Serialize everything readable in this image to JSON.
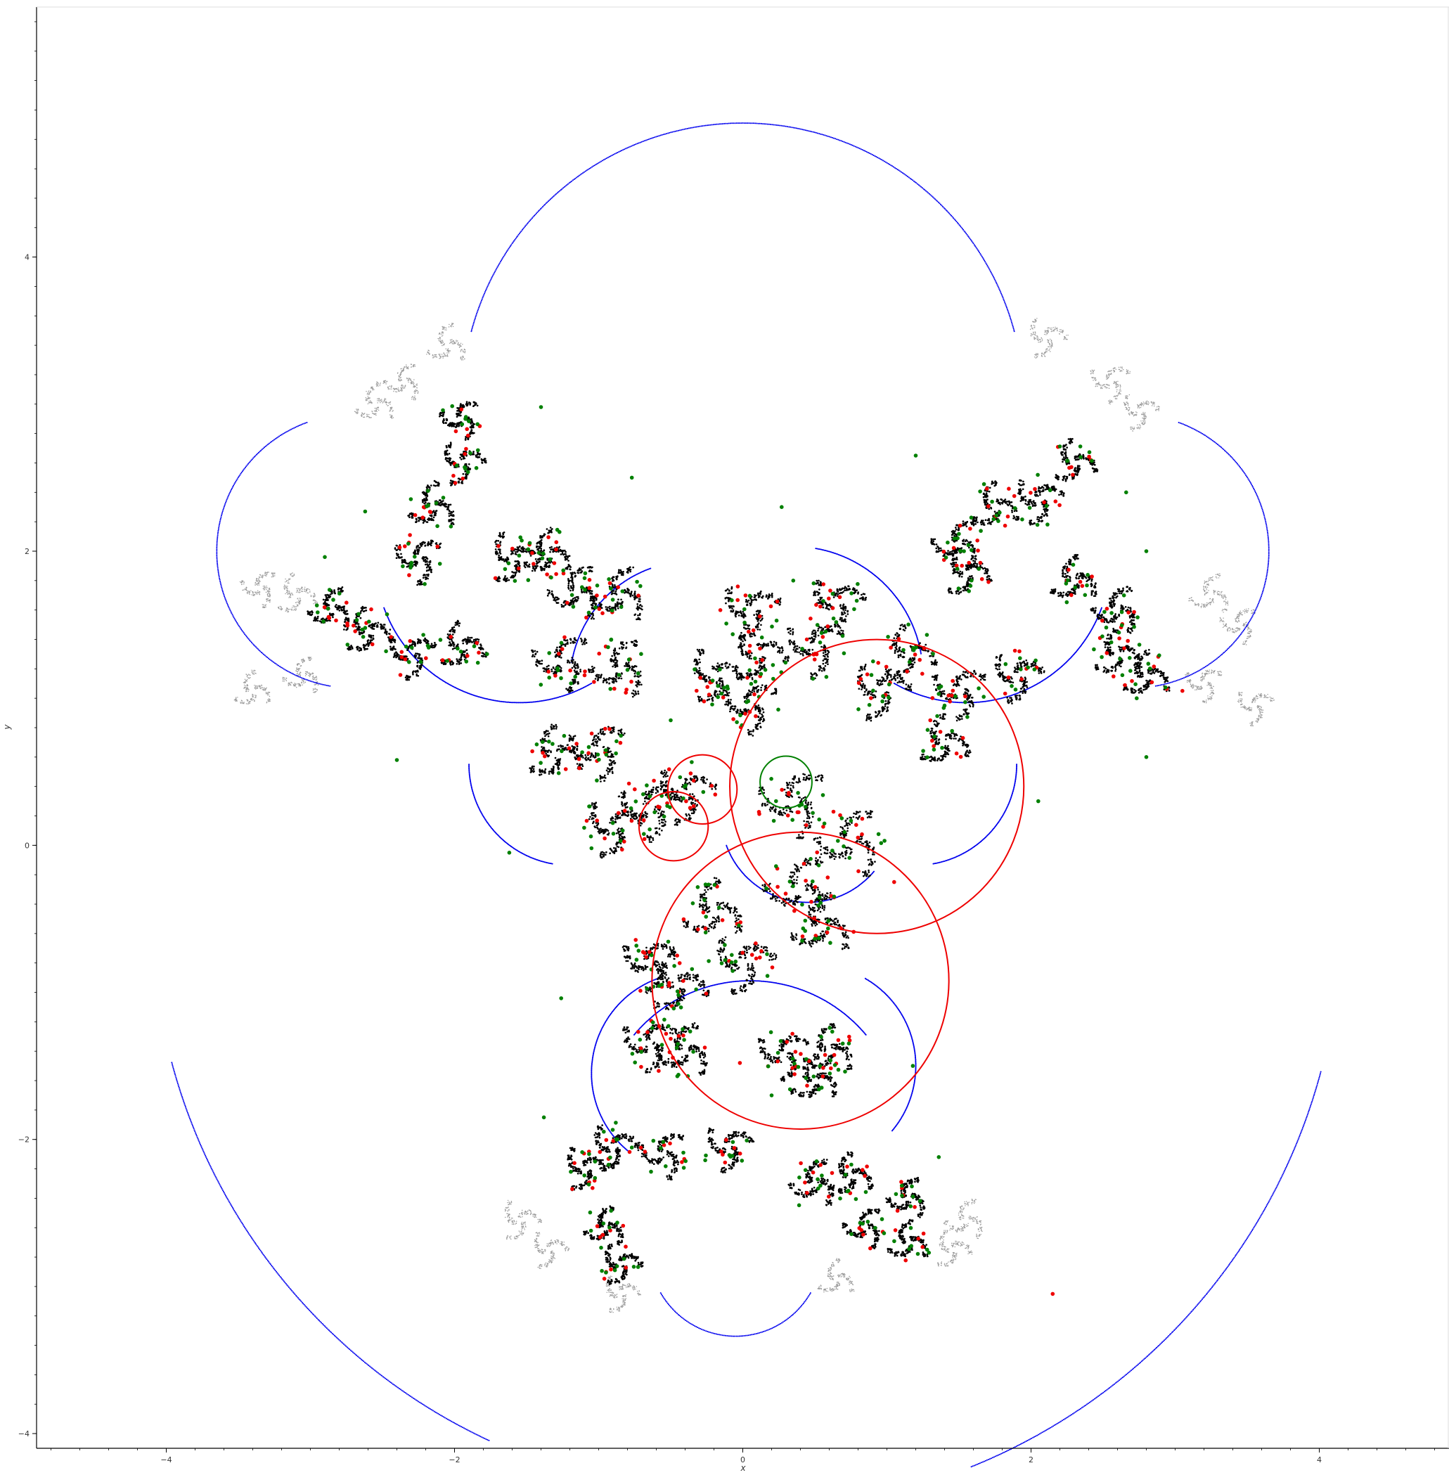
{
  "chart_data": {
    "type": "scatter",
    "xlabel": "x",
    "ylabel": "y",
    "xlim": [
      -4.9,
      4.9
    ],
    "ylim": [
      -4.1,
      5.7
    ],
    "x_ticks": [
      -4,
      -2,
      0,
      2,
      4
    ],
    "y_ticks": [
      -4,
      -2,
      0,
      2,
      4
    ],
    "x_minor_step": 0.2,
    "y_minor_step": 0.2,
    "grid": false,
    "legend": "none",
    "colors": {
      "limit_set": "#000000",
      "faded_limit_set": "#9a9a9a",
      "blue_arcs": "#0000ee",
      "red_points": "#ee0000",
      "green_points": "#008000",
      "red_circles": "#ee0000",
      "green_circle": "#008000",
      "axis": "#000000"
    },
    "red_circles": [
      {
        "cx": 0.93,
        "cy": 0.4,
        "r": 1.02
      },
      {
        "cx": 0.4,
        "cy": -0.92,
        "r": 1.03
      },
      {
        "cx": -0.28,
        "cy": 0.38,
        "r": 0.24
      },
      {
        "cx": -0.48,
        "cy": 0.13,
        "r": 0.24
      }
    ],
    "green_circles": [
      {
        "cx": 0.3,
        "cy": 0.43,
        "r": 0.18
      }
    ],
    "outer_arcs": [
      {
        "cx": 0.0,
        "cy": 3.0,
        "r": 1.95,
        "a0": 15,
        "a1": 165
      },
      {
        "cx": -0.05,
        "cy": -0.45,
        "r": 4.05,
        "a0": 195,
        "a1": 245
      },
      {
        "cx": 0.05,
        "cy": -0.5,
        "r": 4.1,
        "a0": 292,
        "a1": 345
      },
      {
        "cx": -0.05,
        "cy": -2.75,
        "r": 0.6,
        "a0": 210,
        "a1": 330
      },
      {
        "cx": -2.7,
        "cy": 2.0,
        "r": 0.95,
        "a0": 110,
        "a1": 260
      },
      {
        "cx": 2.7,
        "cy": 2.0,
        "r": 0.95,
        "a0": -80,
        "a1": 70
      }
    ],
    "mid_arcs": [
      {
        "cx": -1.55,
        "cy": 1.95,
        "r": 1.0,
        "a0": 200,
        "a1": 300
      },
      {
        "cx": 1.55,
        "cy": 1.95,
        "r": 1.0,
        "a0": 240,
        "a1": 340
      },
      {
        "cx": 0.05,
        "cy": -1.95,
        "r": 1.05,
        "a0": 40,
        "a1": 140
      },
      {
        "cx": 0.35,
        "cy": 1.15,
        "r": 0.9,
        "a0": 10,
        "a1": 80
      },
      {
        "cx": -0.35,
        "cy": 1.1,
        "r": 0.85,
        "a0": 110,
        "a1": 170
      },
      {
        "cx": -1.2,
        "cy": 0.55,
        "r": 0.7,
        "a0": 180,
        "a1": 260
      },
      {
        "cx": 1.2,
        "cy": 0.55,
        "r": 0.7,
        "a0": -80,
        "a1": 0
      },
      {
        "cx": -0.35,
        "cy": -1.55,
        "r": 0.7,
        "a0": 110,
        "a1": 230
      },
      {
        "cx": 0.5,
        "cy": -1.5,
        "r": 0.7,
        "a0": -40,
        "a1": 60
      },
      {
        "cx": 0.45,
        "cy": 0.2,
        "r": 0.6,
        "a0": 200,
        "a1": 320
      }
    ],
    "clusters": [
      {
        "cx": 0.35,
        "cy": 0.3,
        "s": 1.0,
        "d": 0
      },
      {
        "cx": 0.75,
        "cy": 0.02,
        "s": 1.0,
        "d": 0
      },
      {
        "cx": 0.4,
        "cy": -0.3,
        "s": 1.0,
        "d": 0
      },
      {
        "cx": 0.55,
        "cy": -0.55,
        "s": 0.9,
        "d": 0
      },
      {
        "cx": -0.2,
        "cy": -0.45,
        "s": 0.9,
        "d": 0
      },
      {
        "cx": 0.0,
        "cy": -0.8,
        "s": 0.9,
        "d": 0
      },
      {
        "cx": -0.45,
        "cy": -0.95,
        "s": 0.85,
        "d": 0
      },
      {
        "cx": -0.65,
        "cy": -0.8,
        "s": 0.8,
        "d": 0
      },
      {
        "cx": -0.65,
        "cy": -1.35,
        "s": 0.8,
        "d": 0
      },
      {
        "cx": -0.4,
        "cy": -1.4,
        "s": 0.8,
        "d": 0
      },
      {
        "cx": 0.28,
        "cy": -1.42,
        "s": 0.75,
        "d": 0
      },
      {
        "cx": 0.6,
        "cy": -1.4,
        "s": 0.75,
        "d": 0
      },
      {
        "cx": 0.5,
        "cy": -1.6,
        "s": 0.7,
        "d": 0
      },
      {
        "cx": -0.65,
        "cy": 0.25,
        "s": 0.9,
        "d": 0
      },
      {
        "cx": -0.9,
        "cy": 0.12,
        "s": 0.85,
        "d": 0
      },
      {
        "cx": -0.4,
        "cy": 0.35,
        "s": 0.85,
        "d": 0
      },
      {
        "cx": -1.0,
        "cy": 0.65,
        "s": 0.85,
        "d": 0
      },
      {
        "cx": -1.3,
        "cy": 0.62,
        "s": 0.8,
        "d": 0
      },
      {
        "cx": -0.85,
        "cy": 1.2,
        "s": 0.85,
        "d": 0
      },
      {
        "cx": -1.25,
        "cy": 1.25,
        "s": 0.85,
        "d": 0
      },
      {
        "cx": -1.15,
        "cy": 1.72,
        "s": 0.8,
        "d": 0
      },
      {
        "cx": -0.85,
        "cy": 1.7,
        "s": 0.8,
        "d": 0
      },
      {
        "cx": -1.6,
        "cy": 1.95,
        "s": 0.75,
        "d": 0
      },
      {
        "cx": -1.35,
        "cy": 1.98,
        "s": 0.7,
        "d": 0
      },
      {
        "cx": 0.05,
        "cy": 1.6,
        "s": 0.85,
        "d": 0
      },
      {
        "cx": 0.1,
        "cy": 1.3,
        "s": 0.85,
        "d": 0
      },
      {
        "cx": -0.2,
        "cy": 1.15,
        "s": 0.8,
        "d": 0
      },
      {
        "cx": 0.05,
        "cy": 0.95,
        "s": 0.8,
        "d": 0
      },
      {
        "cx": 0.5,
        "cy": 1.35,
        "s": 0.85,
        "d": 0
      },
      {
        "cx": 0.65,
        "cy": 1.65,
        "s": 0.8,
        "d": 0
      },
      {
        "cx": 0.95,
        "cy": 1.05,
        "s": 0.85,
        "d": 0
      },
      {
        "cx": 1.15,
        "cy": 1.3,
        "s": 0.8,
        "d": 0
      },
      {
        "cx": 1.5,
        "cy": 1.05,
        "s": 0.8,
        "d": 0
      },
      {
        "cx": 1.4,
        "cy": 0.7,
        "s": 0.75,
        "d": 0
      },
      {
        "cx": 1.9,
        "cy": 1.15,
        "s": 0.75,
        "d": 0
      },
      {
        "cx": 1.5,
        "cy": 2.05,
        "s": 0.75,
        "d": 0
      },
      {
        "cx": 1.75,
        "cy": 2.3,
        "s": 0.7,
        "d": 0
      },
      {
        "cx": 1.55,
        "cy": 1.85,
        "s": 0.7,
        "d": 0
      },
      {
        "cx": 2.05,
        "cy": 2.35,
        "s": 0.7,
        "d": 0
      },
      {
        "cx": 2.3,
        "cy": 1.8,
        "s": 0.7,
        "d": 0
      },
      {
        "cx": 2.6,
        "cy": 1.6,
        "s": 0.7,
        "d": 0
      },
      {
        "cx": 2.6,
        "cy": 1.3,
        "s": 0.7,
        "d": 0
      },
      {
        "cx": 2.8,
        "cy": 1.15,
        "s": 0.7,
        "d": 0
      },
      {
        "cx": 2.3,
        "cy": 2.6,
        "s": 0.65,
        "d": 0
      },
      {
        "cx": -1.95,
        "cy": 1.35,
        "s": 0.7,
        "d": 0
      },
      {
        "cx": -2.3,
        "cy": 1.3,
        "s": 0.7,
        "d": 0
      },
      {
        "cx": -2.6,
        "cy": 1.45,
        "s": 0.7,
        "d": 0
      },
      {
        "cx": -2.25,
        "cy": 1.95,
        "s": 0.7,
        "d": 0
      },
      {
        "cx": -2.15,
        "cy": 2.3,
        "s": 0.7,
        "d": 0
      },
      {
        "cx": -1.95,
        "cy": 2.6,
        "s": 0.65,
        "d": 0
      },
      {
        "cx": -1.95,
        "cy": 2.9,
        "s": 0.6,
        "d": 0
      },
      {
        "cx": -2.85,
        "cy": 1.6,
        "s": 0.65,
        "d": 0
      },
      {
        "cx": -0.9,
        "cy": -2.05,
        "s": 0.7,
        "d": 0
      },
      {
        "cx": -0.55,
        "cy": -2.1,
        "s": 0.7,
        "d": 0
      },
      {
        "cx": -0.1,
        "cy": -2.05,
        "s": 0.7,
        "d": 0
      },
      {
        "cx": -1.1,
        "cy": -2.2,
        "s": 0.65,
        "d": 0
      },
      {
        "cx": 0.5,
        "cy": -2.3,
        "s": 0.7,
        "d": 0
      },
      {
        "cx": 0.75,
        "cy": -2.25,
        "s": 0.65,
        "d": 0
      },
      {
        "cx": -0.95,
        "cy": -2.6,
        "s": 0.6,
        "d": 0
      },
      {
        "cx": -0.85,
        "cy": -2.85,
        "s": 0.6,
        "d": 0
      },
      {
        "cx": 0.85,
        "cy": -2.6,
        "s": 0.6,
        "d": 0
      },
      {
        "cx": 1.15,
        "cy": -2.4,
        "s": 0.6,
        "d": 0
      },
      {
        "cx": 1.15,
        "cy": -2.7,
        "s": 0.6,
        "d": 0
      },
      {
        "cx": -2.55,
        "cy": 3.0,
        "s": 0.6,
        "d": 1
      },
      {
        "cx": -2.05,
        "cy": 3.4,
        "s": 0.6,
        "d": 1
      },
      {
        "cx": -2.35,
        "cy": 3.15,
        "s": 0.55,
        "d": 1
      },
      {
        "cx": -3.1,
        "cy": 1.7,
        "s": 0.6,
        "d": 1
      },
      {
        "cx": -3.35,
        "cy": 1.75,
        "s": 0.55,
        "d": 1
      },
      {
        "cx": -3.4,
        "cy": 1.05,
        "s": 0.55,
        "d": 1
      },
      {
        "cx": -3.05,
        "cy": 1.15,
        "s": 0.55,
        "d": 1
      },
      {
        "cx": 2.1,
        "cy": 3.45,
        "s": 0.6,
        "d": 1
      },
      {
        "cx": 2.55,
        "cy": 3.15,
        "s": 0.6,
        "d": 1
      },
      {
        "cx": 2.75,
        "cy": 2.95,
        "s": 0.55,
        "d": 1
      },
      {
        "cx": 3.25,
        "cy": 1.7,
        "s": 0.6,
        "d": 1
      },
      {
        "cx": 3.45,
        "cy": 1.5,
        "s": 0.55,
        "d": 1
      },
      {
        "cx": 3.55,
        "cy": 0.95,
        "s": 0.55,
        "d": 1
      },
      {
        "cx": 3.2,
        "cy": 1.1,
        "s": 0.55,
        "d": 1
      },
      {
        "cx": -1.55,
        "cy": -2.55,
        "s": 0.6,
        "d": 1
      },
      {
        "cx": -1.35,
        "cy": -2.75,
        "s": 0.55,
        "d": 1
      },
      {
        "cx": -0.85,
        "cy": -3.05,
        "s": 0.55,
        "d": 1
      },
      {
        "cx": 1.45,
        "cy": -2.75,
        "s": 0.55,
        "d": 1
      },
      {
        "cx": 1.55,
        "cy": -2.55,
        "s": 0.6,
        "d": 1
      },
      {
        "cx": 0.65,
        "cy": -2.95,
        "s": 0.55,
        "d": 1
      }
    ],
    "stray_points": [
      {
        "x": -1.4,
        "y": 2.98,
        "c": "g"
      },
      {
        "x": 1.2,
        "y": 2.65,
        "c": "g"
      },
      {
        "x": -0.77,
        "y": 2.5,
        "c": "g"
      },
      {
        "x": 0.27,
        "y": 2.3,
        "c": "g"
      },
      {
        "x": -2.62,
        "y": 2.27,
        "c": "g"
      },
      {
        "x": -2.9,
        "y": 1.96,
        "c": "g"
      },
      {
        "x": 2.66,
        "y": 2.4,
        "c": "g"
      },
      {
        "x": 2.8,
        "y": 2.0,
        "c": "g"
      },
      {
        "x": -2.4,
        "y": 0.58,
        "c": "g"
      },
      {
        "x": 2.8,
        "y": 0.6,
        "c": "g"
      },
      {
        "x": 2.05,
        "y": 0.3,
        "c": "g"
      },
      {
        "x": -1.62,
        "y": -0.05,
        "c": "g"
      },
      {
        "x": -1.26,
        "y": -1.04,
        "c": "g"
      },
      {
        "x": -1.38,
        "y": -1.85,
        "c": "g"
      },
      {
        "x": 1.18,
        "y": -1.5,
        "c": "g"
      },
      {
        "x": 1.36,
        "y": -2.12,
        "c": "g"
      },
      {
        "x": 2.15,
        "y": -3.05,
        "c": "r"
      },
      {
        "x": 0.35,
        "y": 1.8,
        "c": "g"
      },
      {
        "x": 3.05,
        "y": 1.05,
        "c": "r"
      },
      {
        "x": -2.75,
        "y": 1.65,
        "c": "r"
      },
      {
        "x": 1.4,
        "y": 0.95,
        "c": "g"
      },
      {
        "x": -0.5,
        "y": 0.85,
        "c": "g"
      },
      {
        "x": -0.02,
        "y": -1.48,
        "c": "r"
      },
      {
        "x": 0.2,
        "y": -1.7,
        "c": "g"
      },
      {
        "x": 1.05,
        "y": -0.25,
        "c": "r"
      },
      {
        "x": -1.05,
        "y": -0.02,
        "c": "g"
      }
    ]
  }
}
